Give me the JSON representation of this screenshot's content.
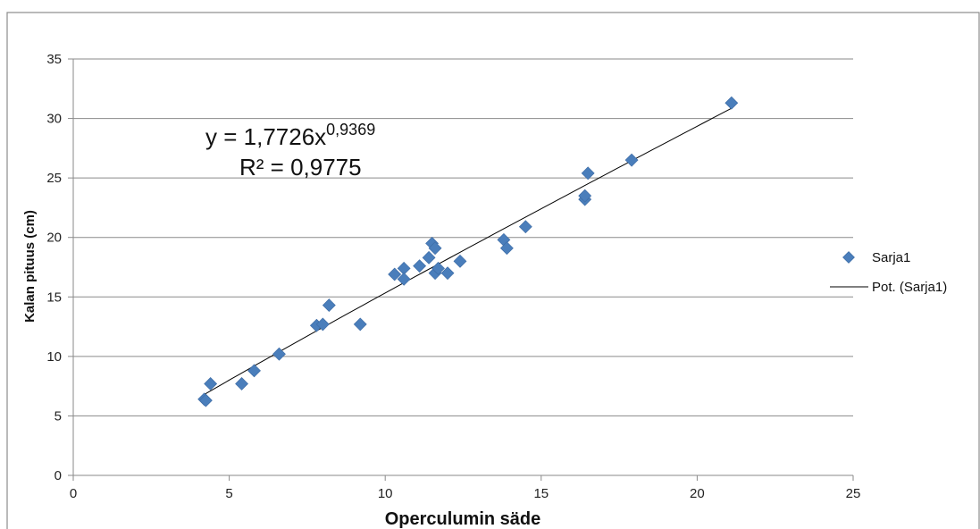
{
  "chart_data": {
    "type": "scatter",
    "xlabel": "Operculumin säde",
    "ylabel": "Kalan pituus (cm)",
    "xlim": [
      0,
      25
    ],
    "ylim": [
      0,
      35
    ],
    "xticks": [
      "0",
      "5",
      "10",
      "15",
      "20",
      "25"
    ],
    "yticks": [
      "0",
      "5",
      "10",
      "15",
      "20",
      "25",
      "30",
      "35"
    ],
    "grid": "horizontal",
    "legend_position": "right",
    "series": [
      {
        "name": "Sarja1",
        "color": "#4A7EBB",
        "marker": "diamond",
        "points": [
          {
            "x": 4.2,
            "y": 6.4
          },
          {
            "x": 4.25,
            "y": 6.3
          },
          {
            "x": 4.4,
            "y": 7.7
          },
          {
            "x": 5.4,
            "y": 7.7
          },
          {
            "x": 5.8,
            "y": 8.8
          },
          {
            "x": 6.6,
            "y": 10.2
          },
          {
            "x": 7.8,
            "y": 12.6
          },
          {
            "x": 8.0,
            "y": 12.7
          },
          {
            "x": 8.2,
            "y": 14.3
          },
          {
            "x": 9.2,
            "y": 12.7
          },
          {
            "x": 10.3,
            "y": 16.9
          },
          {
            "x": 10.6,
            "y": 17.4
          },
          {
            "x": 10.6,
            "y": 16.5
          },
          {
            "x": 11.1,
            "y": 17.6
          },
          {
            "x": 11.4,
            "y": 18.3
          },
          {
            "x": 11.5,
            "y": 19.5
          },
          {
            "x": 11.6,
            "y": 19.1
          },
          {
            "x": 11.6,
            "y": 17.0
          },
          {
            "x": 11.7,
            "y": 17.4
          },
          {
            "x": 12.0,
            "y": 17.0
          },
          {
            "x": 12.4,
            "y": 18.0
          },
          {
            "x": 13.8,
            "y": 19.8
          },
          {
            "x": 13.9,
            "y": 19.1
          },
          {
            "x": 14.5,
            "y": 20.9
          },
          {
            "x": 16.4,
            "y": 23.2
          },
          {
            "x": 16.4,
            "y": 23.5
          },
          {
            "x": 16.5,
            "y": 25.4
          },
          {
            "x": 17.9,
            "y": 26.5
          },
          {
            "x": 21.1,
            "y": 31.3
          }
        ]
      }
    ],
    "trendline": {
      "name": "Pot. (Sarja1)",
      "type": "power",
      "a": 1.7726,
      "b": 0.9369,
      "x_range": [
        4.2,
        21.1
      ],
      "color": "#000000"
    },
    "annotations": {
      "equation_main": "y = 1,7726x",
      "equation_exponent": "0,9369",
      "r_squared": "R² = 0,9775"
    }
  }
}
